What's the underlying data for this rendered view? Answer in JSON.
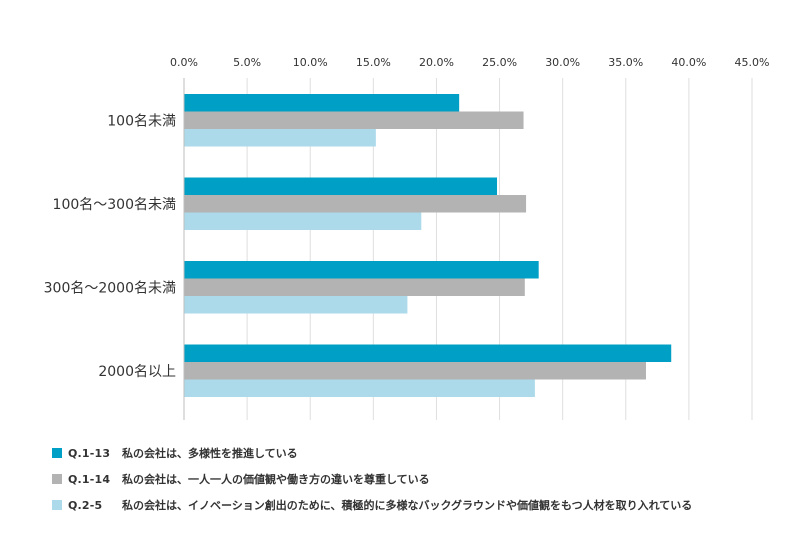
{
  "chart_data": {
    "type": "bar",
    "orientation": "horizontal",
    "title": "",
    "xlabel": "",
    "ylabel": "",
    "xlim": [
      0,
      45
    ],
    "x_ticks": [
      "0.0%",
      "5.0%",
      "10.0%",
      "15.0%",
      "20.0%",
      "25.0%",
      "30.0%",
      "35.0%",
      "40.0%",
      "45.0%"
    ],
    "x_tick_values": [
      0,
      5,
      10,
      15,
      20,
      25,
      30,
      35,
      40,
      45
    ],
    "grid": true,
    "legend_position": "bottom-left",
    "categories": [
      "100名未満",
      "100名～300名未満",
      "300名～2000名未満",
      "2000名以上"
    ],
    "series": [
      {
        "name": "Q.1-13",
        "label": "私の会社は、多様性を推進している",
        "color": "#00a0c6",
        "values": [
          21.8,
          24.8,
          28.1,
          38.6
        ]
      },
      {
        "name": "Q.1-14",
        "label": "私の会社は、一人一人の価値観や働き方の違いを尊重している",
        "color": "#b3b3b3",
        "values": [
          26.9,
          27.1,
          27.0,
          36.6
        ]
      },
      {
        "name": "Q.2-5",
        "label": "私の会社は、イノベーション創出のために、積極的に多様なバックグラウンドや価値観をもつ人材を取り入れている",
        "color": "#acdaea",
        "values": [
          15.2,
          18.8,
          17.7,
          27.8
        ]
      }
    ]
  }
}
